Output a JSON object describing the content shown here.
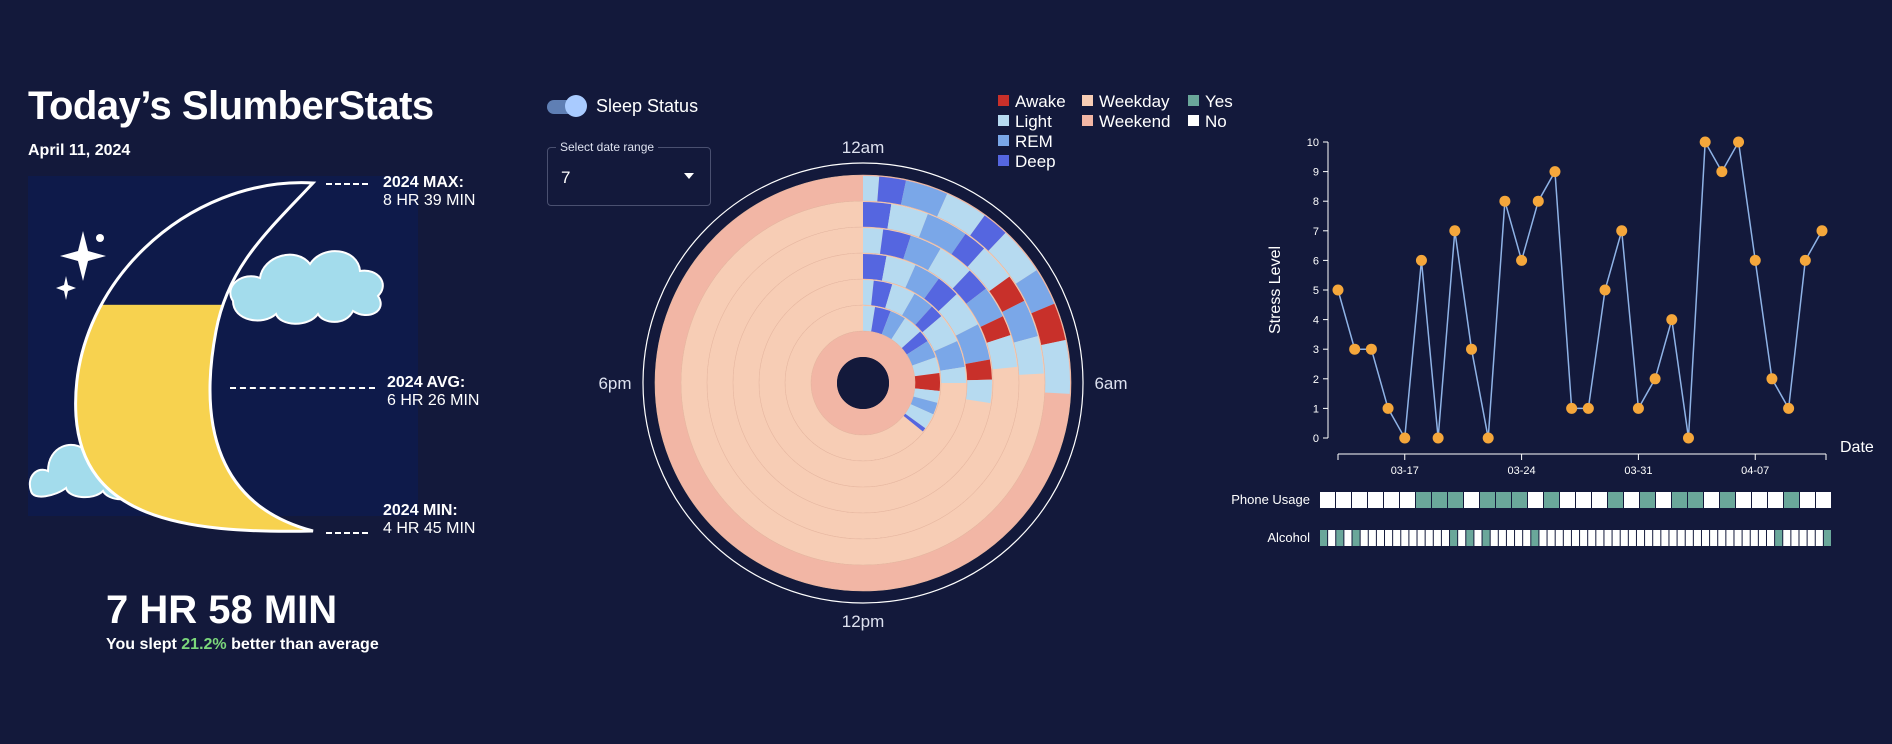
{
  "header": {
    "title": "Today’s SlumberStats",
    "date": "April 11, 2024"
  },
  "moon": {
    "max_label": "2024 MAX:",
    "max_value": "8 HR 39 MIN",
    "avg_label": "2024 AVG:",
    "avg_value": "6 HR 26 MIN",
    "min_label": "2024 MIN:",
    "min_value": "4 HR 45 MIN",
    "fill_fraction": 0.65
  },
  "summary": {
    "total": "7 HR 58 MIN",
    "prefix": "You slept",
    "percent": "21.2%",
    "suffix": "better than average"
  },
  "controls": {
    "toggle_label": "Sleep Status",
    "toggle_on": true,
    "select_legend": "Select date range",
    "select_value": "7"
  },
  "legend": {
    "stages": [
      {
        "label": "Awake",
        "color": "#c8302a"
      },
      {
        "label": "Light",
        "color": "#b6daf0"
      },
      {
        "label": "REM",
        "color": "#7aa7e8"
      },
      {
        "label": "Deep",
        "color": "#5566e0"
      }
    ],
    "days": [
      {
        "label": "Weekday",
        "color": "#f7cdb5"
      },
      {
        "label": "Weekend",
        "color": "#f2b6a5"
      }
    ],
    "flags": [
      {
        "label": "Yes",
        "color": "#6aa79a"
      },
      {
        "label": "No",
        "color": "#ffffff"
      }
    ]
  },
  "colors": {
    "background": "#13193b",
    "weekday": "#f7cdb5",
    "weekend": "#f2b6a5",
    "awake": "#c8302a",
    "light": "#b6daf0",
    "rem": "#7aa7e8",
    "deep": "#5566e0",
    "yes": "#6aa79a",
    "no": "#ffffff",
    "point": "#f5a73b",
    "line": "#8fb3e6"
  },
  "chart_data": [
    {
      "type": "radial",
      "clock_labels": [
        "12am",
        "6am",
        "12pm",
        "6pm"
      ],
      "rings": [
        {
          "day_type": "weekend",
          "segments": [
            {
              "stage": "Light",
              "start": 0.0,
              "end": 0.3
            },
            {
              "stage": "Deep",
              "start": 0.3,
              "end": 0.8
            },
            {
              "stage": "REM",
              "start": 0.8,
              "end": 1.6
            },
            {
              "stage": "Light",
              "start": 1.6,
              "end": 2.4
            },
            {
              "stage": "Deep",
              "start": 2.4,
              "end": 2.9
            },
            {
              "stage": "Light",
              "start": 2.9,
              "end": 3.8
            },
            {
              "stage": "REM",
              "start": 3.8,
              "end": 4.5
            },
            {
              "stage": "Awake",
              "start": 4.5,
              "end": 5.2
            },
            {
              "stage": "Light",
              "start": 5.2,
              "end": 6.2
            }
          ]
        },
        {
          "day_type": "weekday",
          "segments": [
            {
              "stage": "Deep",
              "start": 0.0,
              "end": 0.6
            },
            {
              "stage": "Light",
              "start": 0.6,
              "end": 1.4
            },
            {
              "stage": "REM",
              "start": 1.4,
              "end": 2.3
            },
            {
              "stage": "Deep",
              "start": 2.3,
              "end": 2.8
            },
            {
              "stage": "Light",
              "start": 2.8,
              "end": 3.6
            },
            {
              "stage": "Awake",
              "start": 3.6,
              "end": 4.2
            },
            {
              "stage": "REM",
              "start": 4.2,
              "end": 5.0
            },
            {
              "stage": "Light",
              "start": 5.0,
              "end": 5.8
            }
          ]
        },
        {
          "day_type": "weekday",
          "segments": [
            {
              "stage": "Light",
              "start": 0.0,
              "end": 0.5
            },
            {
              "stage": "Deep",
              "start": 0.5,
              "end": 1.2
            },
            {
              "stage": "REM",
              "start": 1.2,
              "end": 2.0
            },
            {
              "stage": "Light",
              "start": 2.0,
              "end": 2.9
            },
            {
              "stage": "Deep",
              "start": 2.9,
              "end": 3.5
            },
            {
              "stage": "REM",
              "start": 3.5,
              "end": 4.3
            },
            {
              "stage": "Awake",
              "start": 4.3,
              "end": 4.8
            },
            {
              "stage": "Light",
              "start": 4.8,
              "end": 5.6
            }
          ]
        },
        {
          "day_type": "weekday",
          "segments": [
            {
              "stage": "Deep",
              "start": 0.0,
              "end": 0.7
            },
            {
              "stage": "Light",
              "start": 0.7,
              "end": 1.6
            },
            {
              "stage": "REM",
              "start": 1.6,
              "end": 2.4
            },
            {
              "stage": "Deep",
              "start": 2.4,
              "end": 3.1
            },
            {
              "stage": "Light",
              "start": 3.1,
              "end": 4.2
            },
            {
              "stage": "REM",
              "start": 4.2,
              "end": 5.3
            },
            {
              "stage": "Awake",
              "start": 5.3,
              "end": 5.9
            },
            {
              "stage": "Light",
              "start": 5.9,
              "end": 6.6
            }
          ]
        },
        {
          "day_type": "weekday",
          "segments": [
            {
              "stage": "Light",
              "start": 0.0,
              "end": 0.4
            },
            {
              "stage": "Deep",
              "start": 0.4,
              "end": 1.1
            },
            {
              "stage": "Light",
              "start": 1.1,
              "end": 2.0
            },
            {
              "stage": "REM",
              "start": 2.0,
              "end": 2.8
            },
            {
              "stage": "Deep",
              "start": 2.8,
              "end": 3.3
            },
            {
              "stage": "Light",
              "start": 3.3,
              "end": 4.4
            },
            {
              "stage": "REM",
              "start": 4.4,
              "end": 5.4
            },
            {
              "stage": "Light",
              "start": 5.4,
              "end": 6.0
            }
          ]
        },
        {
          "day_type": "weekday",
          "segments": [
            {
              "stage": "Light",
              "start": 0.0,
              "end": 0.6
            },
            {
              "stage": "Deep",
              "start": 0.6,
              "end": 1.4
            },
            {
              "stage": "REM",
              "start": 1.4,
              "end": 2.2
            },
            {
              "stage": "Light",
              "start": 2.2,
              "end": 3.2
            },
            {
              "stage": "Deep",
              "start": 3.2,
              "end": 3.8
            },
            {
              "stage": "REM",
              "start": 3.8,
              "end": 4.7
            },
            {
              "stage": "Light",
              "start": 4.7,
              "end": 5.5
            },
            {
              "stage": "Awake",
              "start": 5.5,
              "end": 6.4
            },
            {
              "stage": "Light",
              "start": 6.4,
              "end": 7.0
            },
            {
              "stage": "REM",
              "start": 7.0,
              "end": 7.6
            },
            {
              "stage": "Light",
              "start": 7.6,
              "end": 8.4
            },
            {
              "stage": "Deep",
              "start": 8.4,
              "end": 8.6
            }
          ]
        },
        {
          "day_type": "weekend",
          "segments": []
        }
      ]
    },
    {
      "type": "line",
      "ylabel": "Stress Level",
      "xlabel": "Date",
      "ylim": [
        0,
        10
      ],
      "yticks": [
        0,
        1,
        2,
        3,
        4,
        5,
        6,
        7,
        8,
        9,
        10
      ],
      "xticks": [
        "03-17",
        "03-24",
        "03-31",
        "04-07"
      ],
      "x": [
        "03-13",
        "03-14",
        "03-15",
        "03-16",
        "03-17",
        "03-18",
        "03-19",
        "03-20",
        "03-21",
        "03-22",
        "03-23",
        "03-24",
        "03-25",
        "03-26",
        "03-27",
        "03-28",
        "03-29",
        "03-30",
        "03-31",
        "04-01",
        "04-02",
        "04-03",
        "04-04",
        "04-05",
        "04-06",
        "04-07",
        "04-08",
        "04-09",
        "04-10",
        "04-11"
      ],
      "values": [
        5,
        3,
        3,
        1,
        0,
        6,
        0,
        7,
        3,
        0,
        8,
        6,
        8,
        9,
        1,
        1,
        5,
        7,
        1,
        2,
        4,
        0,
        10,
        9,
        10,
        6,
        2,
        1,
        6,
        7
      ]
    },
    {
      "type": "table",
      "rows": [
        {
          "label": "Phone Usage",
          "values": [
            0,
            0,
            0,
            0,
            0,
            0,
            1,
            1,
            1,
            0,
            1,
            1,
            1,
            0,
            1,
            0,
            0,
            0,
            1,
            0,
            1,
            0,
            1,
            1,
            0,
            1,
            0,
            0,
            0,
            1,
            0,
            0
          ]
        },
        {
          "label": "Alcohol",
          "values": [
            1,
            0,
            1,
            0,
            1,
            0,
            0,
            0,
            0,
            0,
            0,
            0,
            0,
            0,
            0,
            0,
            1,
            0,
            1,
            0,
            1,
            0,
            0,
            0,
            0,
            0,
            1,
            0,
            0,
            0,
            0,
            0,
            0,
            0,
            0,
            0,
            0,
            0,
            0,
            0,
            0,
            0,
            0,
            0,
            0,
            0,
            0,
            0,
            0,
            0,
            0,
            0,
            0,
            0,
            0,
            0,
            1,
            0,
            0,
            0,
            0,
            0,
            1
          ]
        }
      ]
    }
  ]
}
